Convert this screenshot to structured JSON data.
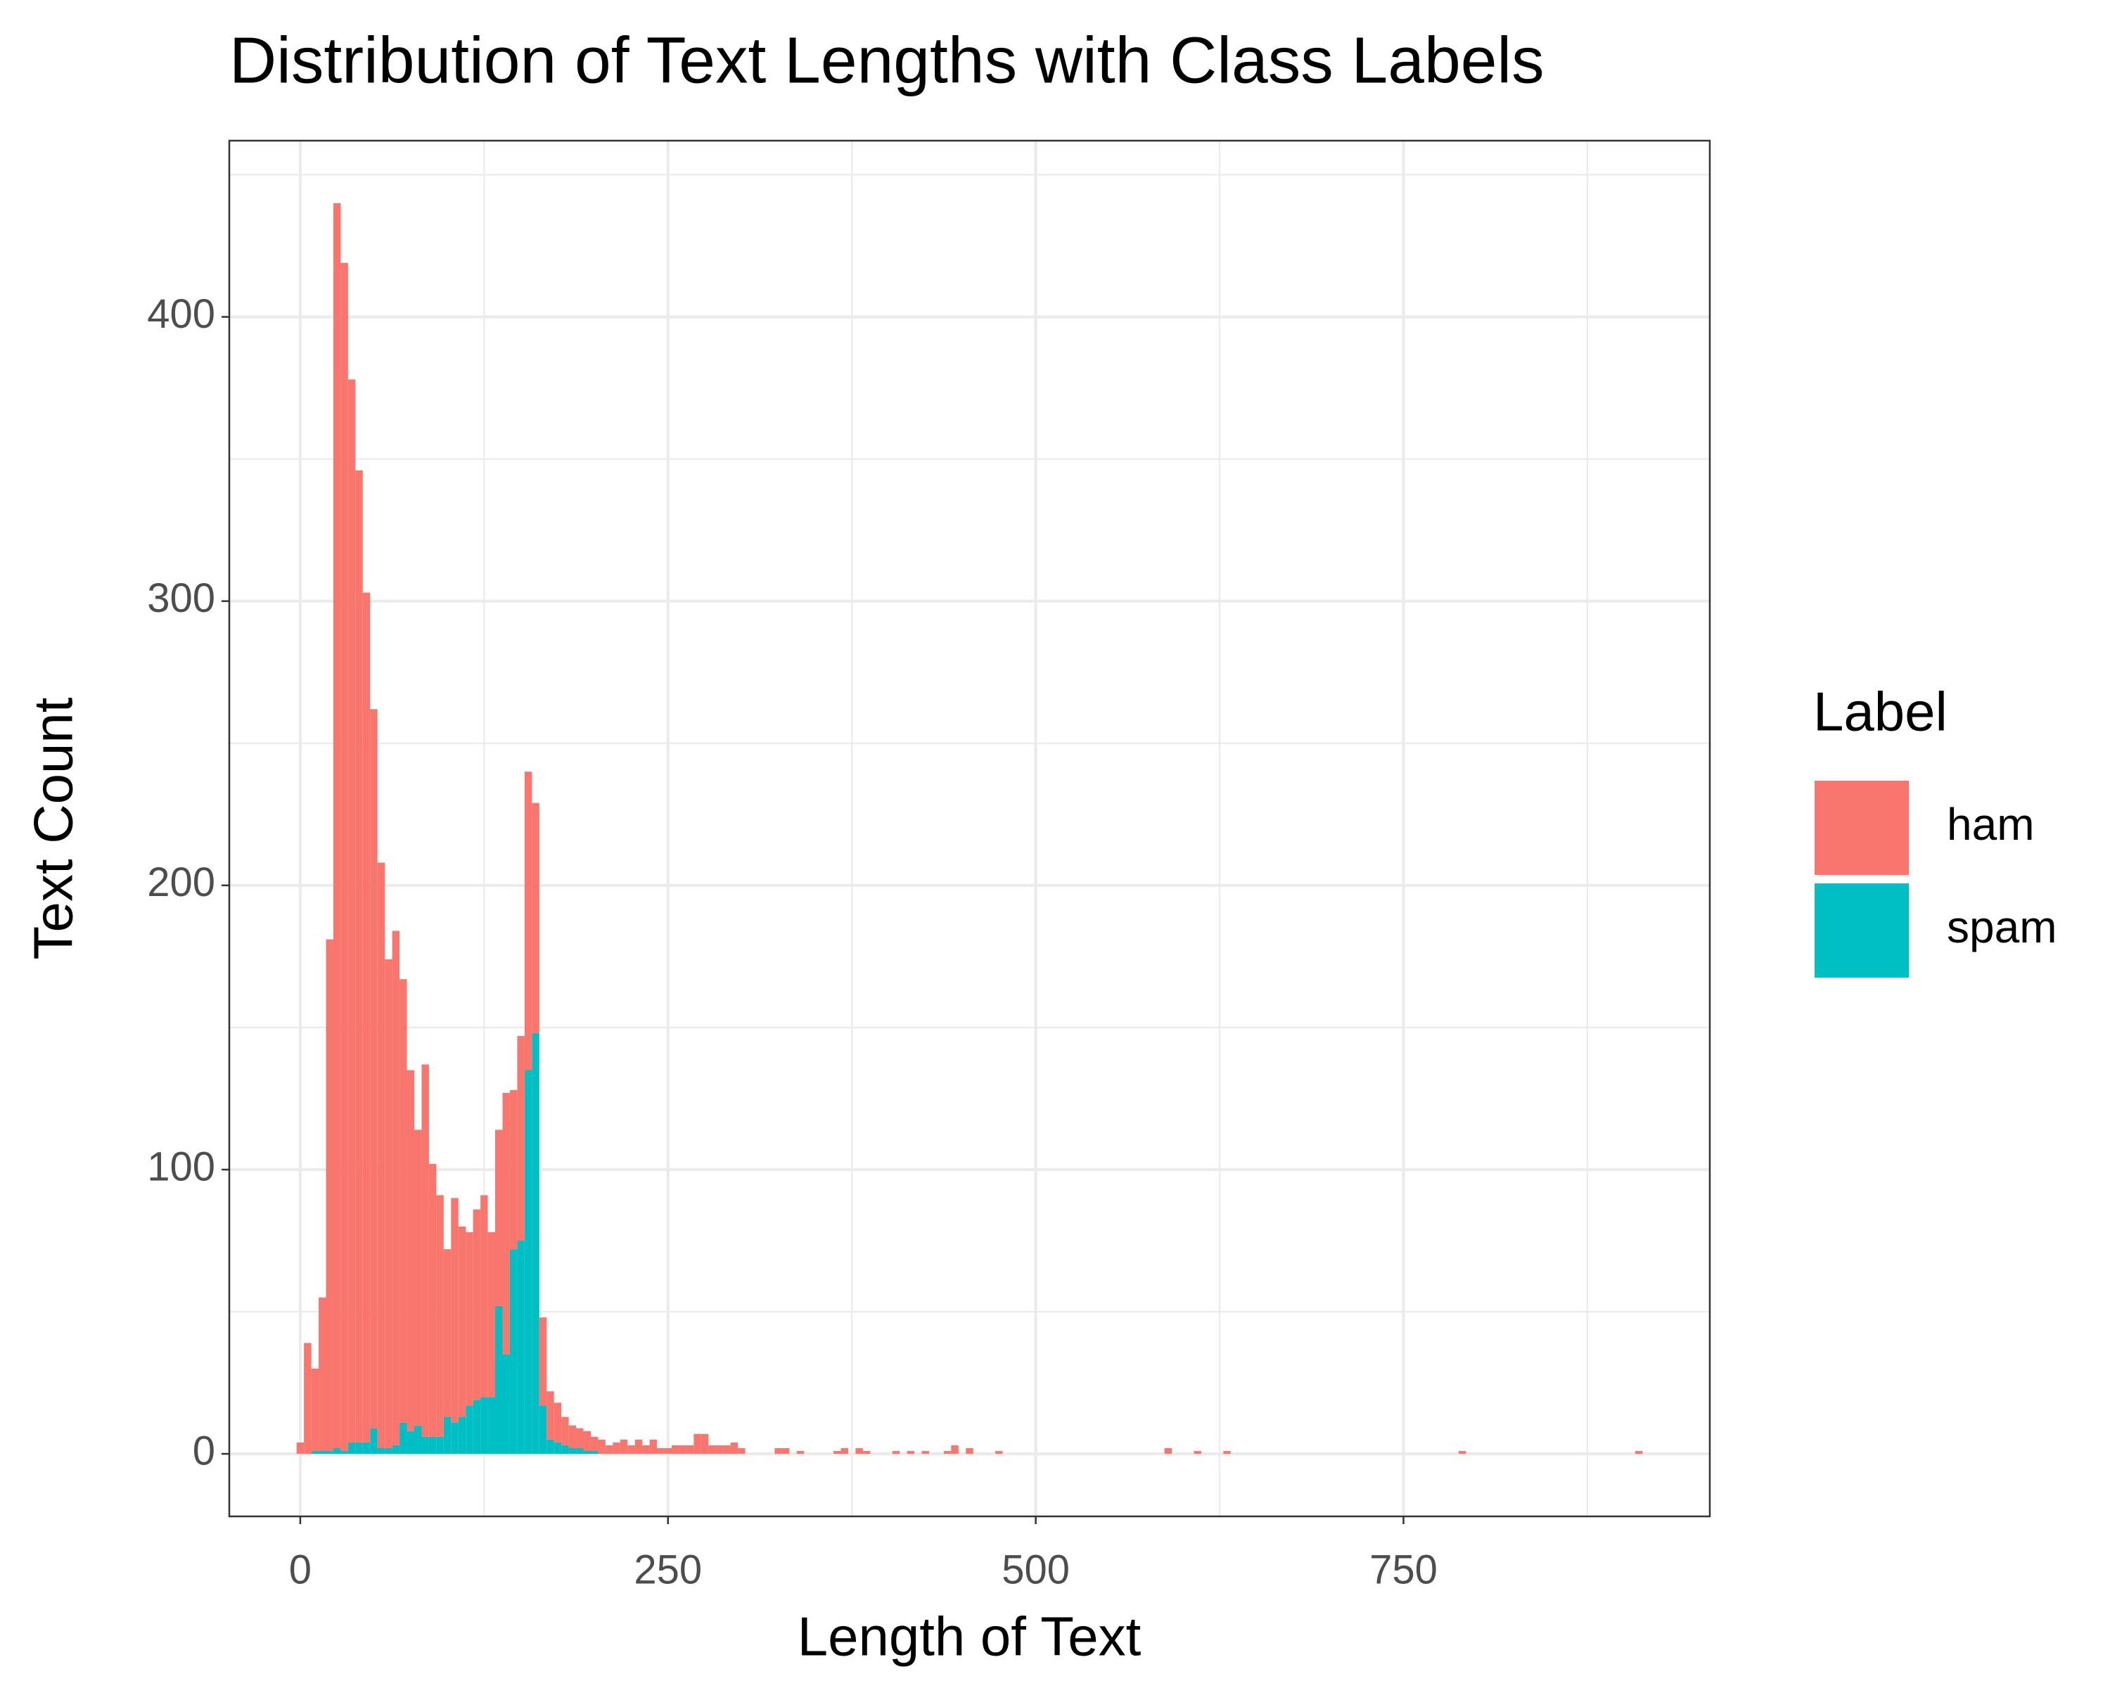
{
  "chart_data": {
    "type": "histogram",
    "title": "Distribution of Text Lengths with Class Labels",
    "x_label": "Length of Text",
    "y_label": "Text Count",
    "legend_title": "Label",
    "legend_position": "right",
    "stacked": true,
    "grid": true,
    "bins": [
      -2.5,
      2.5,
      7.5,
      12.5,
      17.5,
      22.5,
      27.5,
      32.5,
      37.5,
      42.5,
      47.5,
      52.5,
      57.5,
      62.5,
      67.5,
      72.5,
      77.5,
      82.5,
      87.5,
      92.5,
      97.5,
      102.5,
      107.5,
      112.5,
      117.5,
      122.5,
      127.5,
      132.5,
      137.5,
      142.5,
      147.5,
      152.5,
      157.5,
      162.5,
      167.5,
      172.5,
      177.5,
      182.5,
      187.5,
      192.5,
      197.5,
      202.5,
      207.5,
      212.5,
      217.5,
      222.5,
      227.5,
      232.5,
      237.5,
      242.5,
      247.5,
      252.5,
      257.5,
      262.5,
      267.5,
      272.5,
      277.5,
      282.5,
      287.5,
      292.5,
      297.5,
      302.5,
      307.5,
      312.5,
      317.5,
      322.5,
      327.5,
      332.5,
      337.5,
      342.5,
      347.5,
      352.5,
      357.5,
      362.5,
      367.5,
      372.5,
      377.5,
      382.5,
      387.5,
      392.5,
      397.5,
      402.5,
      407.5,
      412.5,
      417.5,
      422.5,
      427.5,
      432.5,
      437.5,
      442.5,
      447.5,
      452.5,
      457.5,
      462.5,
      467.5,
      472.5,
      477.5,
      482.5,
      487.5,
      492.5,
      497.5,
      502.5,
      507.5,
      512.5,
      517.5,
      522.5,
      527.5,
      532.5,
      537.5,
      542.5,
      547.5,
      552.5,
      557.5,
      562.5,
      567.5,
      572.5,
      577.5,
      582.5,
      587.5,
      592.5,
      597.5,
      602.5,
      607.5,
      612.5,
      617.5,
      622.5,
      627.5,
      632.5,
      637.5,
      642.5,
      647.5,
      652.5,
      657.5,
      662.5,
      667.5,
      672.5,
      677.5,
      682.5,
      687.5,
      692.5,
      697.5,
      702.5,
      707.5,
      712.5,
      717.5,
      722.5,
      727.5,
      732.5,
      737.5,
      742.5,
      747.5,
      752.5,
      757.5,
      762.5,
      767.5,
      772.5,
      777.5,
      782.5,
      787.5,
      792.5,
      797.5,
      802.5,
      807.5,
      812.5,
      817.5,
      822.5,
      827.5,
      832.5,
      837.5,
      842.5,
      847.5,
      852.5,
      857.5,
      862.5,
      867.5,
      872.5,
      877.5,
      882.5,
      887.5,
      892.5,
      897.5,
      902.5,
      907.5,
      912.5
    ],
    "series": [
      {
        "name": "ham",
        "color": "#F8766D",
        "values": [
          4,
          39,
          29,
          54,
          180,
          438,
          418,
          374,
          342,
          299,
          253,
          206,
          172,
          181,
          156,
          127,
          104,
          131,
          96,
          85,
          59,
          79,
          67,
          61,
          67,
          71,
          58,
          62,
          92,
          56,
          72,
          105,
          81,
          31,
          17,
          14,
          10,
          8,
          7,
          7,
          5,
          5,
          3,
          4,
          5,
          3,
          5,
          3,
          5,
          2,
          2,
          3,
          3,
          3,
          7,
          7,
          3,
          3,
          3,
          4,
          2,
          0,
          0,
          0,
          0,
          2,
          2,
          0,
          1,
          0,
          0,
          0,
          0,
          1,
          2,
          0,
          2,
          1,
          0,
          0,
          0,
          1,
          0,
          1,
          0,
          1,
          0,
          0,
          1,
          3,
          0,
          2,
          0,
          0,
          0,
          1,
          0,
          0,
          0,
          0,
          0,
          0,
          0,
          0,
          0,
          0,
          0,
          0,
          0,
          0,
          0,
          0,
          0,
          0,
          0,
          0,
          0,
          0,
          2,
          0,
          0,
          0,
          1,
          0,
          0,
          0,
          1,
          0,
          0,
          0,
          0,
          0,
          0,
          0,
          0,
          0,
          0,
          0,
          0,
          0,
          0,
          0,
          0,
          0,
          0,
          0,
          0,
          0,
          0,
          0,
          0,
          0,
          0,
          0,
          0,
          0,
          0,
          0,
          1,
          0,
          0,
          0,
          0,
          0,
          0,
          0,
          0,
          0,
          0,
          0,
          0,
          0,
          0,
          0,
          0,
          0,
          0,
          0,
          0,
          0,
          0,
          0,
          1
        ]
      },
      {
        "name": "spam",
        "color": "#00BFC4",
        "values": [
          0,
          0,
          1,
          1,
          1,
          2,
          1,
          4,
          4,
          4,
          9,
          2,
          2,
          3,
          11,
          8,
          10,
          6,
          6,
          6,
          13,
          11,
          13,
          17,
          19,
          20,
          20,
          52,
          35,
          72,
          75,
          135,
          148,
          17,
          5,
          4,
          3,
          2,
          2,
          1,
          1,
          0,
          0,
          0,
          0,
          0,
          0,
          0,
          0,
          0,
          0,
          0,
          0,
          0,
          0,
          0,
          0,
          0,
          0,
          0,
          0,
          0,
          0,
          0,
          0,
          0,
          0,
          0,
          0,
          0,
          0,
          0,
          0,
          0,
          0,
          0,
          0,
          0,
          0,
          0,
          0,
          0,
          0,
          0,
          0,
          0,
          0,
          0,
          0,
          0,
          0,
          0,
          0,
          0,
          0,
          0,
          0,
          0,
          0,
          0,
          0,
          0,
          0,
          0,
          0,
          0,
          0,
          0,
          0,
          0,
          0,
          0,
          0,
          0,
          0,
          0,
          0,
          0,
          0,
          0,
          0,
          0,
          0,
          0,
          0,
          0,
          0,
          0,
          0,
          0,
          0,
          0,
          0,
          0,
          0,
          0,
          0,
          0,
          0,
          0,
          0,
          0,
          0,
          0,
          0,
          0,
          0,
          0,
          0,
          0,
          0,
          0,
          0,
          0,
          0,
          0,
          0,
          0,
          0,
          0,
          0,
          0,
          0,
          0,
          0,
          0,
          0,
          0,
          0,
          0,
          0,
          0,
          0,
          0,
          0,
          0,
          0,
          0,
          0,
          0,
          0,
          0,
          0
        ]
      }
    ],
    "xlim": [
      -48.25,
      958.25
    ],
    "ylim": [
      -22,
      462
    ],
    "xticks": [
      0,
      250,
      500,
      750
    ],
    "yticks": [
      0,
      100,
      200,
      300,
      400
    ],
    "x_minor_ticks": [
      125,
      375,
      625,
      875
    ],
    "y_minor_ticks": [
      50,
      150,
      250,
      350,
      450
    ]
  }
}
